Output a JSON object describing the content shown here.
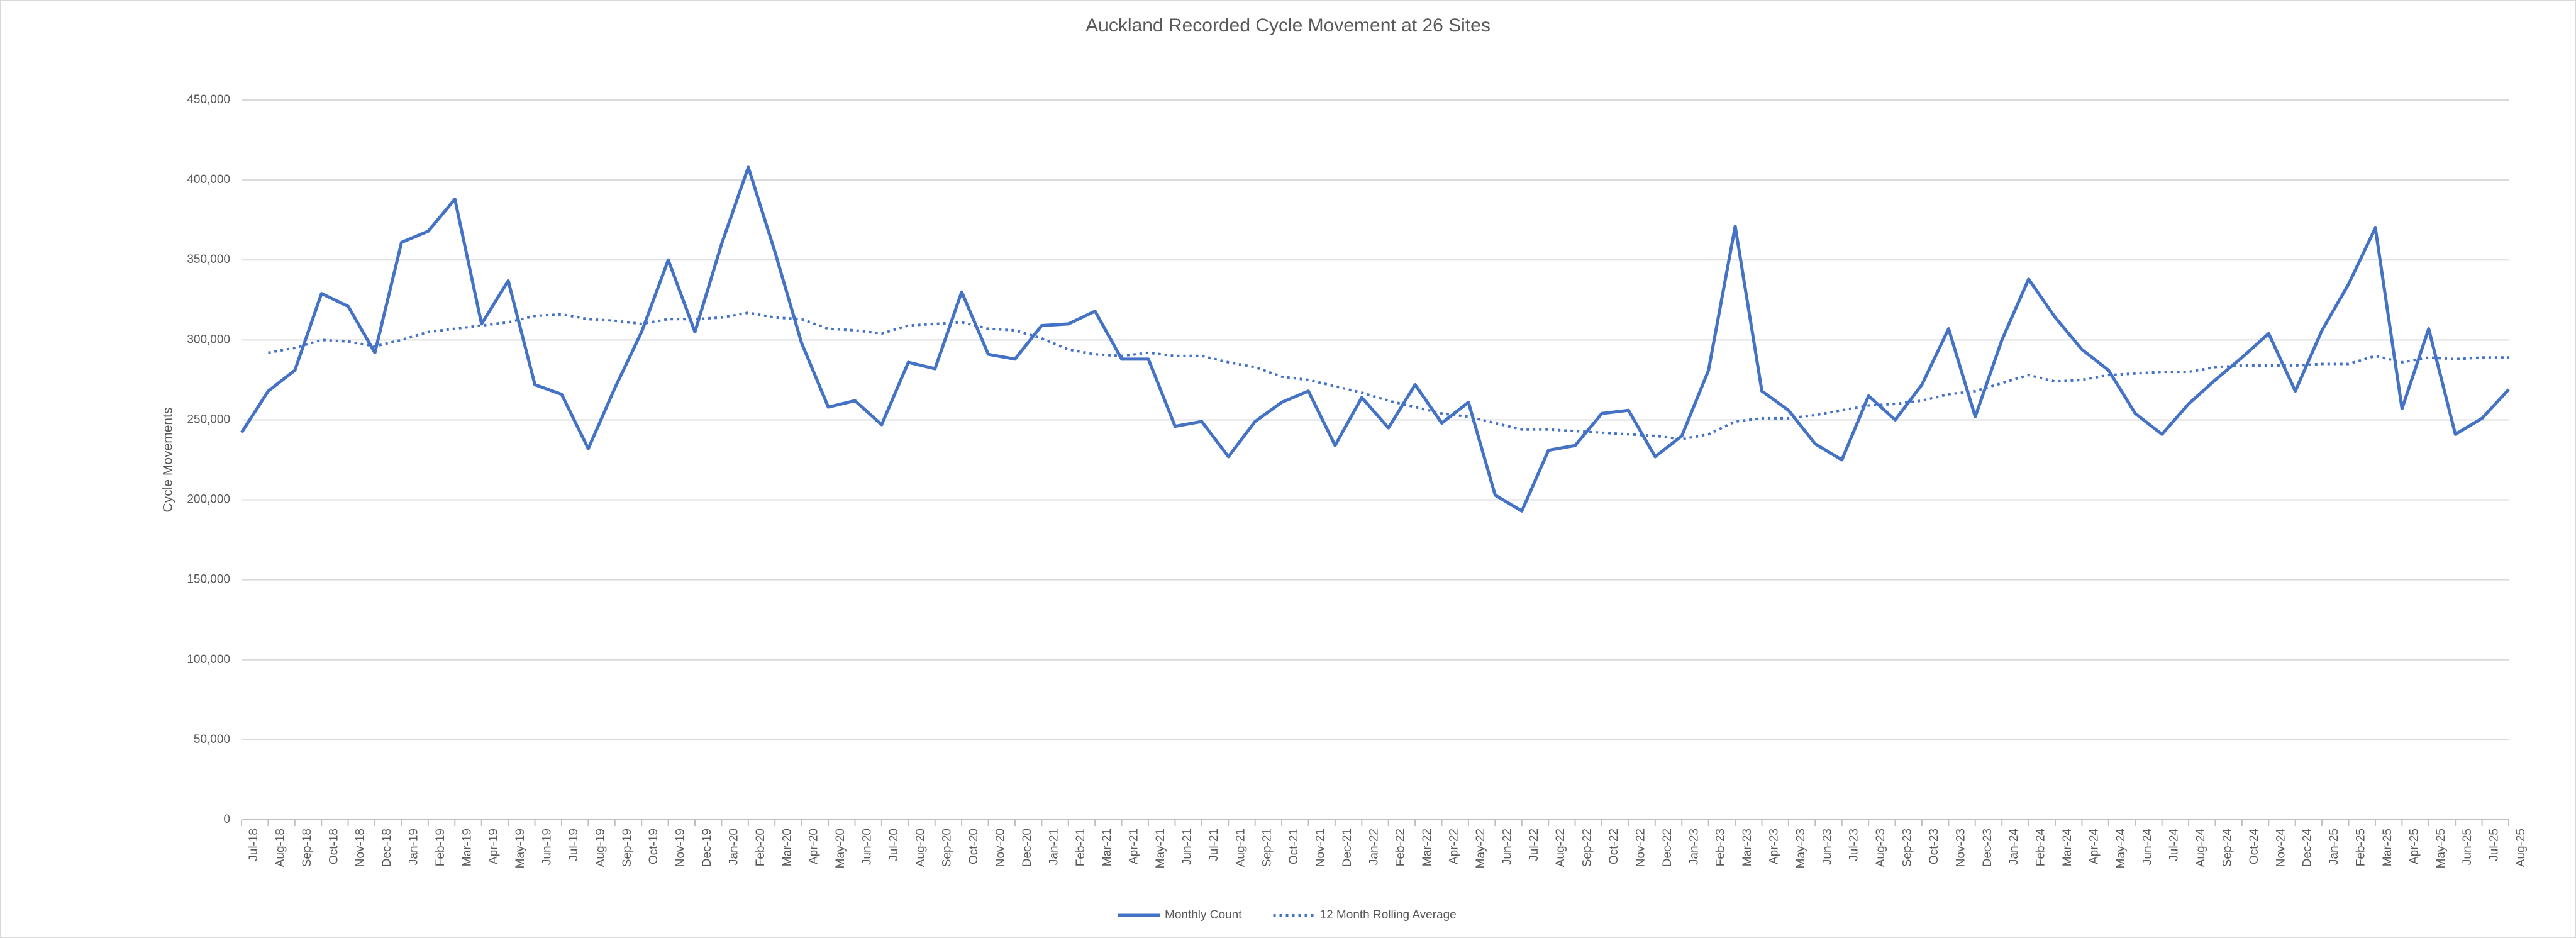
{
  "chart_data": {
    "type": "line",
    "title": "Auckland Recorded Cycle Movement at 26 Sites",
    "y_label": "Cycle Movements",
    "categories": [
      "Jul-18",
      "Aug-18",
      "Sep-18",
      "Oct-18",
      "Nov-18",
      "Dec-18",
      "Jan-19",
      "Feb-19",
      "Mar-19",
      "Apr-19",
      "May-19",
      "Jun-19",
      "Jul-19",
      "Aug-19",
      "Sep-19",
      "Oct-19",
      "Nov-19",
      "Dec-19",
      "Jan-20",
      "Feb-20",
      "Mar-20",
      "Apr-20",
      "May-20",
      "Jun-20",
      "Jul-20",
      "Aug-20",
      "Sep-20",
      "Oct-20",
      "Nov-20",
      "Dec-20",
      "Jan-21",
      "Feb-21",
      "Mar-21",
      "Apr-21",
      "May-21",
      "Jun-21",
      "Jul-21",
      "Aug-21",
      "Sep-21",
      "Oct-21",
      "Nov-21",
      "Dec-21",
      "Jan-22",
      "Feb-22",
      "Mar-22",
      "Apr-22",
      "May-22",
      "Jun-22",
      "Jul-22",
      "Aug-22",
      "Sep-22",
      "Oct-22",
      "Nov-22",
      "Dec-22",
      "Jan-23",
      "Feb-23",
      "Mar-23",
      "Apr-23",
      "May-23",
      "Jun-23",
      "Jul-23",
      "Aug-23",
      "Sep-23",
      "Oct-23",
      "Nov-23",
      "Dec-23",
      "Jan-24",
      "Feb-24",
      "Mar-24",
      "Apr-24",
      "May-24",
      "Jun-24",
      "Jul-24",
      "Aug-24",
      "Sep-24",
      "Oct-24",
      "Nov-24",
      "Dec-24",
      "Jan-25",
      "Feb-25",
      "Mar-25",
      "Apr-25",
      "May-25",
      "Jun-25",
      "Jul-25",
      "Aug-25"
    ],
    "series": [
      {
        "name": "Monthly Count",
        "color": "#4472c4",
        "line_style": "solid",
        "values": [
          242000,
          268000,
          281000,
          329000,
          321000,
          292000,
          361000,
          368000,
          388000,
          310000,
          337000,
          272000,
          266000,
          232000,
          270000,
          305000,
          350000,
          305000,
          360000,
          408000,
          355000,
          298000,
          258000,
          262000,
          247000,
          286000,
          282000,
          330000,
          291000,
          288000,
          309000,
          310000,
          318000,
          288000,
          288000,
          246000,
          249000,
          227000,
          249000,
          261000,
          268000,
          234000,
          264000,
          245000,
          272000,
          248000,
          261000,
          203000,
          193000,
          231000,
          234000,
          254000,
          256000,
          227000,
          240000,
          281000,
          371000,
          268000,
          256000,
          235000,
          225000,
          265000,
          250000,
          272000,
          307000,
          252000,
          300000,
          338000,
          314000,
          294000,
          281000,
          254000,
          241000,
          260000,
          275000,
          289000,
          304000,
          268000,
          306000,
          335000,
          370000,
          257000,
          307000,
          241000,
          251000,
          269000
        ]
      },
      {
        "name": "12 Month Rolling Average",
        "color": "#4472c4",
        "line_style": "dotted",
        "values": [
          null,
          292000,
          295000,
          300000,
          299000,
          296000,
          300000,
          305000,
          307000,
          309000,
          311000,
          315000,
          316000,
          313000,
          312000,
          310000,
          313000,
          313000,
          314000,
          317000,
          314000,
          313000,
          307000,
          306000,
          304000,
          309000,
          310000,
          311000,
          307000,
          306000,
          301000,
          294000,
          291000,
          290000,
          292000,
          290000,
          290000,
          286000,
          283000,
          277000,
          275000,
          271000,
          267000,
          262000,
          258000,
          254000,
          252000,
          248000,
          244000,
          244000,
          243000,
          242000,
          241000,
          240000,
          238000,
          241000,
          249000,
          251000,
          251000,
          253000,
          256000,
          259000,
          260000,
          262000,
          266000,
          268000,
          273000,
          278000,
          274000,
          275000,
          278000,
          279000,
          280000,
          280000,
          283000,
          284000,
          284000,
          284000,
          285000,
          285000,
          290000,
          286000,
          289000,
          288000,
          289000,
          289000
        ]
      }
    ],
    "ylim": [
      0,
      450000
    ],
    "yticks": [
      0,
      {
        "value": 50000,
        "label": "50,000"
      },
      {
        "value": 100000,
        "label": "100,000"
      },
      {
        "value": 150000,
        "label": "150,000"
      },
      {
        "value": 200000,
        "label": "200,000"
      },
      {
        "value": 250000,
        "label": "250,000"
      },
      {
        "value": 300000,
        "label": "300,000"
      },
      {
        "value": 350000,
        "label": "350,000"
      },
      {
        "value": 400000,
        "label": "400,000"
      },
      {
        "value": 450000,
        "label": "450,000"
      }
    ],
    "grid": true,
    "legend": "bottom"
  }
}
